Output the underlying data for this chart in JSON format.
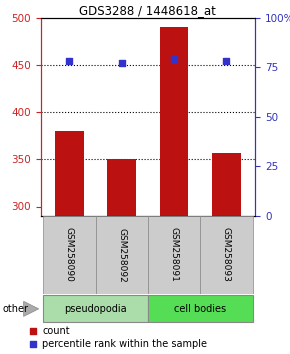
{
  "title": "GDS3288 / 1448618_at",
  "bar_categories": [
    "GSM258090",
    "GSM258092",
    "GSM258091",
    "GSM258093"
  ],
  "bar_values": [
    380,
    350,
    490,
    357
  ],
  "bar_bottom": 290,
  "dot_values": [
    78,
    77,
    79,
    78
  ],
  "bar_color": "#bb1111",
  "dot_color": "#3333cc",
  "ylim_left": [
    290,
    500
  ],
  "ylim_right": [
    0,
    100
  ],
  "yticks_left": [
    300,
    350,
    400,
    450,
    500
  ],
  "yticks_right": [
    0,
    25,
    50,
    75,
    100
  ],
  "yticklabels_right": [
    "0",
    "25",
    "50",
    "75",
    "100%"
  ],
  "grid_values": [
    350,
    400,
    450
  ],
  "group_labels": [
    "pseudopodia",
    "cell bodies"
  ],
  "group_colors": [
    "#aaddaa",
    "#55dd55"
  ],
  "other_label": "other",
  "legend_count_label": "count",
  "legend_pct_label": "percentile rank within the sample",
  "left_axis_color": "#cc2222",
  "right_axis_color": "#3333bb",
  "bar_width": 0.55,
  "background_color": "#ffffff",
  "plot_bg_color": "#ffffff",
  "gray_label_color": "#cccccc",
  "label_fontsize": 7.5,
  "tick_fontsize": 7.5
}
